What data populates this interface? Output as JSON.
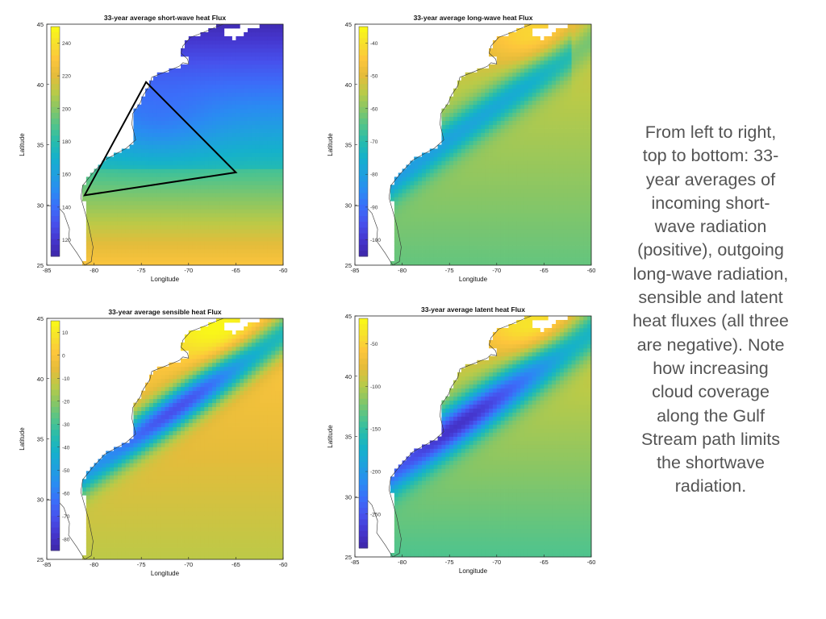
{
  "chart_data": [
    {
      "type": "heatmap",
      "id": "shortwave",
      "title": "33-year average short-wave heat Flux",
      "xlabel": "Longitude",
      "ylabel": "Latitude",
      "xlim": [
        -85,
        -60
      ],
      "ylim": [
        25,
        45
      ],
      "xticks": [
        "-85",
        "-80",
        "-75",
        "-70",
        "-65",
        "-60"
      ],
      "yticks": [
        "25",
        "30",
        "35",
        "40",
        "45"
      ],
      "colorbar_range": [
        110,
        250
      ],
      "colorbar_ticks": [
        "240",
        "220",
        "200",
        "180",
        "160",
        "140",
        "120"
      ],
      "colorbar_values": [
        240,
        220,
        200,
        180,
        160,
        140,
        120
      ],
      "field_pattern": "low values over the Gulf Stream, rising toward the south",
      "annotation_triangle": [
        [
          -74.5,
          40.2
        ],
        [
          -65,
          32.7
        ],
        [
          -81,
          30.8
        ]
      ]
    },
    {
      "type": "heatmap",
      "id": "longwave",
      "title": "33-year average long-wave heat Flux",
      "xlabel": "Longitude",
      "ylabel": "Latitude",
      "xlim": [
        -85,
        -60
      ],
      "ylim": [
        25,
        45
      ],
      "xticks": [
        "-85",
        "-80",
        "-75",
        "-70",
        "-65",
        "-60"
      ],
      "yticks": [
        "25",
        "30",
        "35",
        "40",
        "45"
      ],
      "colorbar_range": [
        -105,
        -35
      ],
      "colorbar_ticks": [
        "-40",
        "-50",
        "-60",
        "-70",
        "-80",
        "-90",
        "-100"
      ],
      "colorbar_values": [
        -40,
        -50,
        -60,
        -70,
        -80,
        -90,
        -100
      ],
      "field_pattern": "minimum along the Gulf Stream"
    },
    {
      "type": "heatmap",
      "id": "sensible",
      "title": "33-year average sensible heat Flux",
      "xlabel": "Longitude",
      "ylabel": "Latitude",
      "xlim": [
        -85,
        -60
      ],
      "ylim": [
        25,
        45
      ],
      "xticks": [
        "-85",
        "-80",
        "-75",
        "-70",
        "-65",
        "-60"
      ],
      "yticks": [
        "25",
        "30",
        "35",
        "40",
        "45"
      ],
      "colorbar_range": [
        -85,
        15
      ],
      "colorbar_ticks": [
        "10",
        "0",
        "-10",
        "-20",
        "-30",
        "-40",
        "-50",
        "-60",
        "-70",
        "-80"
      ],
      "colorbar_values": [
        10,
        0,
        -10,
        -20,
        -30,
        -40,
        -50,
        -60,
        -70,
        -80
      ],
      "field_pattern": "minimum along the Gulf Stream"
    },
    {
      "type": "heatmap",
      "id": "latent",
      "title": "33-year average latent heat Flux",
      "xlabel": "Longitude",
      "ylabel": "Latitude",
      "xlim": [
        -85,
        -60
      ],
      "ylim": [
        25,
        45
      ],
      "xticks": [
        "-85",
        "-80",
        "-75",
        "-70",
        "-65",
        "-60"
      ],
      "yticks": [
        "25",
        "30",
        "35",
        "40",
        "45"
      ],
      "colorbar_range": [
        -290,
        -20
      ],
      "colorbar_ticks": [
        "-50",
        "-100",
        "-150",
        "-200",
        "-250"
      ],
      "colorbar_values": [
        -50,
        -100,
        -150,
        -200,
        -250
      ],
      "field_pattern": "minimum along the Gulf Stream"
    }
  ],
  "caption": {
    "lines": [
      "From left to right,",
      "top to bottom: 33-",
      "year averages of",
      "incoming short-",
      "wave radiation",
      "(positive), outgoing",
      "long-wave radiation,",
      "sensible and latent",
      "heat fluxes (all three",
      "are negative). Note",
      "how increasing",
      "cloud coverage",
      "along the Gulf",
      "Stream path limits",
      "the shortwave",
      "radiation."
    ]
  },
  "colors": {
    "parula": [
      "#3e26a8",
      "#4536ce",
      "#4751ec",
      "#3b6ef9",
      "#2a8bf2",
      "#1fa0df",
      "#15b1cb",
      "#27bcac",
      "#53c48a",
      "#88c665",
      "#baca48",
      "#e4bc3b",
      "#fdc53c",
      "#f7e12d",
      "#f9fb15"
    ],
    "land": "#ffffff",
    "contour": "#101010",
    "annotation": "#000000"
  }
}
